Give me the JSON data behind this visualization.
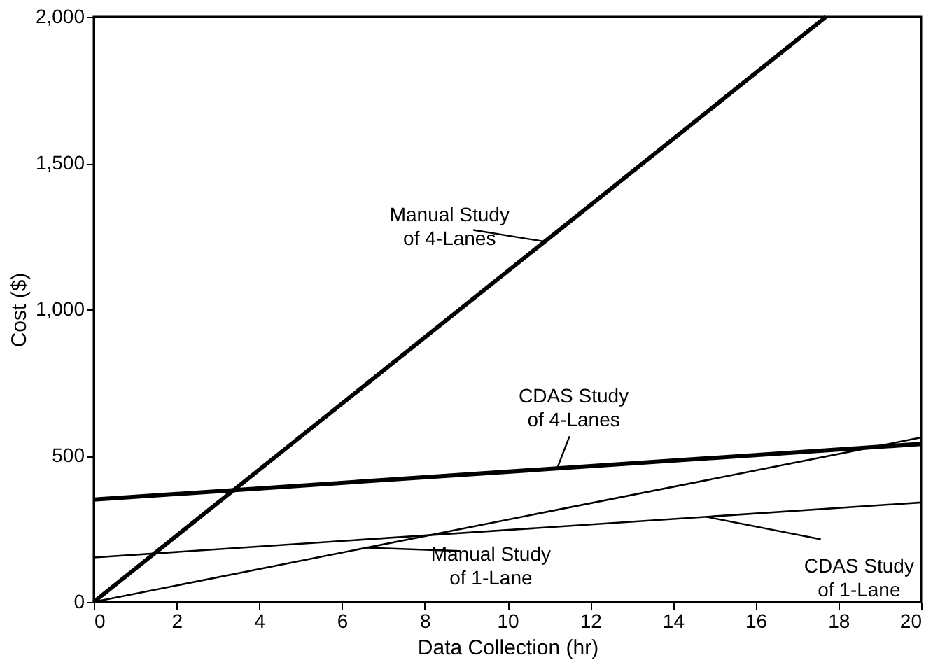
{
  "chart_data": {
    "type": "line",
    "xlabel": "Data Collection (hr)",
    "ylabel": "Cost ($)",
    "xlim": [
      0,
      20
    ],
    "xticks": [
      0,
      2,
      4,
      6,
      8,
      10,
      12,
      14,
      16,
      18,
      20
    ],
    "ylim": [
      0,
      2000
    ],
    "yticks": [
      0,
      {
        "value": 500,
        "label": "500"
      },
      {
        "value": 1000,
        "label": "1,000"
      },
      {
        "value": 1500,
        "label": "1,500"
      },
      {
        "value": 2000,
        "label": "2,000"
      }
    ],
    "marker": "none",
    "line_style": "solid",
    "series": [
      {
        "name": "Manual Study of 4-Lanes",
        "color": "#000000",
        "x": [
          0,
          17.7
        ],
        "values": [
          0,
          2000
        ]
      },
      {
        "name": "CDAS Study of 4-Lanes",
        "color": "#000000",
        "x": [
          0,
          20
        ],
        "values": [
          350,
          540
        ]
      },
      {
        "name": "Manual Study of 1-Lane",
        "color": "#000000",
        "x": [
          0,
          20
        ],
        "values": [
          0,
          562
        ]
      },
      {
        "name": "CDAS Study of 1-Lane",
        "color": "#000000",
        "x": [
          0,
          20
        ],
        "values": [
          152,
          340
        ]
      }
    ]
  }
}
